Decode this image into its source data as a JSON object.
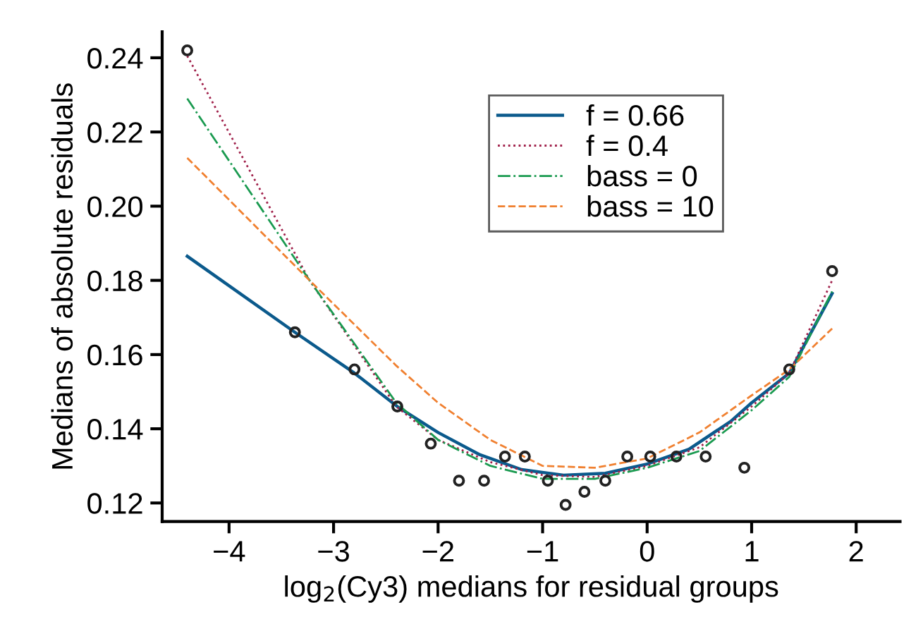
{
  "chart_data": {
    "type": "line",
    "xlabel": "log$_{2}$(Cy3) medians for residual groups",
    "ylabel": "Medians of absolute residuals",
    "xlim": [
      -4.64,
      2.42
    ],
    "ylim": [
      0.115,
      0.247
    ],
    "xticks": [
      {
        "value": -4,
        "label": "−4"
      },
      {
        "value": -3,
        "label": "−3"
      },
      {
        "value": -2,
        "label": "−2"
      },
      {
        "value": -1,
        "label": "−1"
      },
      0,
      1,
      2
    ],
    "yticks": [
      {
        "value": 0.12,
        "label": "0.12"
      },
      {
        "value": 0.14,
        "label": "0.14"
      },
      {
        "value": 0.16,
        "label": "0.16"
      },
      {
        "value": 0.18,
        "label": "0.18"
      },
      {
        "value": 0.2,
        "label": "0.20"
      },
      {
        "value": 0.22,
        "label": "0.22"
      },
      {
        "value": 0.24,
        "label": "0.24"
      }
    ],
    "grid": false,
    "legend": "top right",
    "series": [
      {
        "type": "scatter",
        "marker": "circle",
        "color": "#222222",
        "x": [
          -4.4,
          -3.37,
          -2.8,
          -2.39,
          -2.07,
          -1.8,
          -1.56,
          -1.36,
          -1.17,
          -0.95,
          -0.78,
          -0.6,
          -0.4,
          -0.19,
          0.03,
          0.28,
          0.56,
          0.93,
          1.36,
          1.77
        ],
        "values": [
          0.242,
          0.166,
          0.156,
          0.146,
          0.136,
          0.126,
          0.126,
          0.1325,
          0.1325,
          0.126,
          0.1195,
          0.123,
          0.126,
          0.1325,
          0.1325,
          0.1325,
          0.1325,
          0.1295,
          0.156,
          0.1825
        ]
      },
      {
        "name": "f = 0.66",
        "color": "#0b5a8c",
        "line_style": "solid",
        "x": [
          -4.4,
          -3.37,
          -2.8,
          -2.39,
          -2.0,
          -1.6,
          -1.2,
          -0.8,
          -0.4,
          0.0,
          0.4,
          0.8,
          1.0,
          1.36,
          1.77
        ],
        "values": [
          0.1865,
          0.166,
          0.155,
          0.146,
          0.139,
          0.133,
          0.129,
          0.1275,
          0.128,
          0.1305,
          0.1345,
          0.142,
          0.147,
          0.155,
          0.1765
        ]
      },
      {
        "name": "f = 0.4",
        "color": "#a0204a",
        "line_style": "dotted",
        "x": [
          -4.4,
          -3.23,
          -2.4,
          -2.0,
          -1.5,
          -1.0,
          -0.5,
          0.0,
          0.5,
          1.0,
          1.36,
          1.77
        ],
        "values": [
          0.2405,
          0.18,
          0.146,
          0.137,
          0.131,
          0.1275,
          0.127,
          0.13,
          0.135,
          0.146,
          0.155,
          0.18
        ]
      },
      {
        "name": "bass = 0",
        "color": "#1a9a50",
        "line_style": "dashdot",
        "x": [
          -4.4,
          -3.23,
          -2.4,
          -2.0,
          -1.5,
          -1.0,
          -0.5,
          0.0,
          0.5,
          1.0,
          1.36,
          1.77
        ],
        "values": [
          0.229,
          0.18,
          0.147,
          0.137,
          0.13,
          0.1265,
          0.1265,
          0.1295,
          0.134,
          0.145,
          0.154,
          0.177
        ]
      },
      {
        "name": "bass = 10",
        "color": "#f08030",
        "line_style": "dashed",
        "x": [
          -4.4,
          -3.23,
          -2.4,
          -2.0,
          -1.5,
          -1.0,
          -0.5,
          0.0,
          0.5,
          1.0,
          1.36,
          1.77
        ],
        "values": [
          0.213,
          0.18,
          0.157,
          0.147,
          0.137,
          0.13,
          0.1295,
          0.132,
          0.139,
          0.149,
          0.156,
          0.167
        ]
      }
    ]
  }
}
